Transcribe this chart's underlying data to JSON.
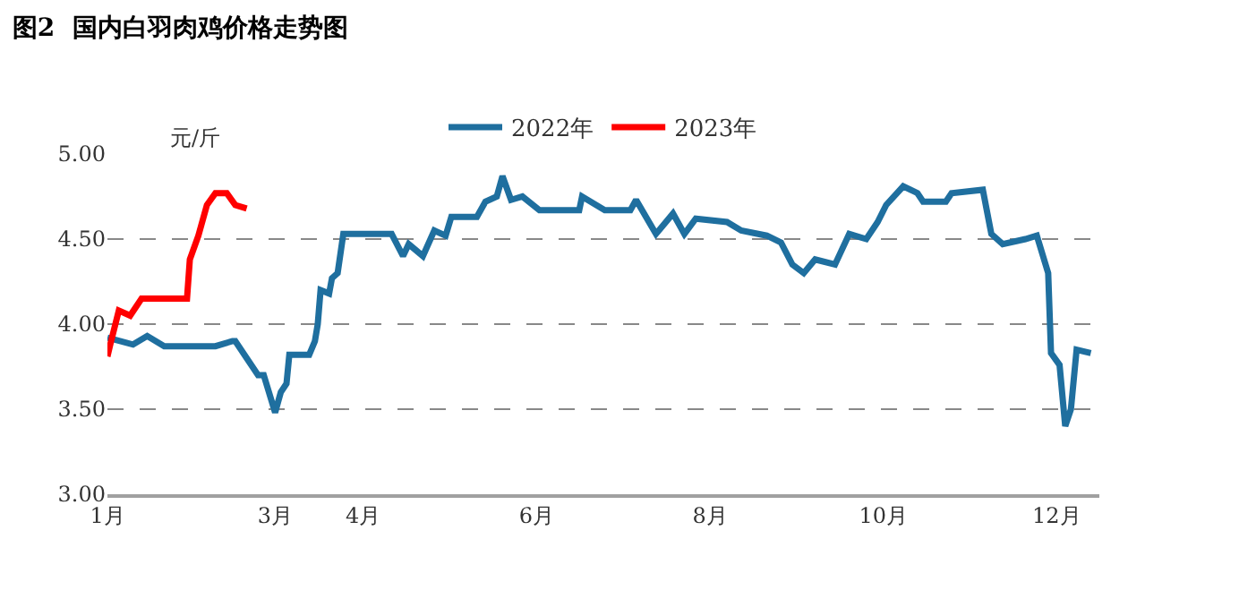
{
  "chart_data": {
    "type": "line",
    "title": "图2  国内白羽肉鸡价格走势图",
    "ylabel": "元/斤",
    "xlim": [
      "--01-01",
      "--12-16"
    ],
    "ylim": [
      3.0,
      5.0
    ],
    "xticks": [
      {
        "value": "--01-01",
        "label": "1月"
      },
      {
        "value": "--03-01",
        "label": "3月"
      },
      {
        "value": "--04-01",
        "label": "4月"
      },
      {
        "value": "--06-01",
        "label": "6月"
      },
      {
        "value": "--08-01",
        "label": "8月"
      },
      {
        "value": "--10-01",
        "label": "10月"
      },
      {
        "value": "--12-01",
        "label": "12月"
      }
    ],
    "yticks": [
      {
        "value": 3.0,
        "label": "3.00"
      },
      {
        "value": 3.5,
        "label": "3.50"
      },
      {
        "value": 4.0,
        "label": "4.00"
      },
      {
        "value": 4.5,
        "label": "4.50"
      },
      {
        "value": 5.0,
        "label": "5.00"
      }
    ],
    "grid": "y",
    "legend": "top",
    "marker": "none",
    "line_style": "solid",
    "series": [
      {
        "name": "2022年",
        "color": "#1f6f9f",
        "x": [
          "--01-01",
          "--01-10",
          "--01-15",
          "--01-21",
          "--02-08",
          "--02-14",
          "--02-15",
          "--02-19",
          "--02-23",
          "--02-25",
          "--03-01",
          "--03-03",
          "--03-05",
          "--03-06",
          "--03-13",
          "--03-15",
          "--03-16",
          "--03-17",
          "--03-20",
          "--03-21",
          "--03-23",
          "--03-25",
          "--04-11",
          "--04-15",
          "--04-17",
          "--04-22",
          "--04-26",
          "--04-30",
          "--05-02",
          "--05-11",
          "--05-14",
          "--05-18",
          "--05-20",
          "--05-23",
          "--05-27",
          "--06-02",
          "--06-16",
          "--06-17",
          "--06-25",
          "--07-04",
          "--07-06",
          "--07-13",
          "--07-19",
          "--07-23",
          "--07-27",
          "--08-07",
          "--08-12",
          "--08-21",
          "--08-26",
          "--08-30",
          "--09-03",
          "--09-07",
          "--09-14",
          "--09-19",
          "--09-25",
          "--09-29",
          "--10-02",
          "--10-08",
          "--10-13",
          "--10-15",
          "--10-23",
          "--10-25",
          "--11-05",
          "--11-08",
          "--11-12",
          "--11-20",
          "--11-24",
          "--11-28",
          "--11-29",
          "--12-02",
          "--12-04",
          "--12-06",
          "--12-08",
          "--12-13"
        ],
        "values": [
          3.92,
          3.88,
          3.93,
          3.87,
          3.87,
          3.9,
          3.9,
          3.8,
          3.7,
          3.7,
          3.48,
          3.6,
          3.65,
          3.82,
          3.82,
          3.9,
          4.0,
          4.2,
          4.18,
          4.27,
          4.3,
          4.53,
          4.53,
          4.4,
          4.47,
          4.4,
          4.55,
          4.52,
          4.63,
          4.63,
          4.72,
          4.75,
          4.87,
          4.73,
          4.75,
          4.67,
          4.67,
          4.75,
          4.67,
          4.67,
          4.73,
          4.53,
          4.65,
          4.53,
          4.62,
          4.6,
          4.55,
          4.52,
          4.48,
          4.35,
          4.3,
          4.38,
          4.35,
          4.53,
          4.5,
          4.6,
          4.7,
          4.81,
          4.77,
          4.72,
          4.72,
          4.77,
          4.79,
          4.53,
          4.47,
          4.5,
          4.52,
          4.3,
          3.83,
          3.76,
          3.4,
          3.5,
          3.85,
          3.83
        ]
      },
      {
        "name": "2023年",
        "color": "#ff0000",
        "x": [
          "--01-01",
          "--01-02",
          "--01-05",
          "--01-09",
          "--01-13",
          "--01-19",
          "--01-29",
          "--01-30",
          "--02-02",
          "--02-05",
          "--02-08",
          "--02-12",
          "--02-15",
          "--02-19"
        ],
        "values": [
          3.81,
          3.88,
          4.08,
          4.05,
          4.15,
          4.15,
          4.15,
          4.38,
          4.52,
          4.7,
          4.77,
          4.77,
          4.7,
          4.68
        ]
      }
    ]
  }
}
